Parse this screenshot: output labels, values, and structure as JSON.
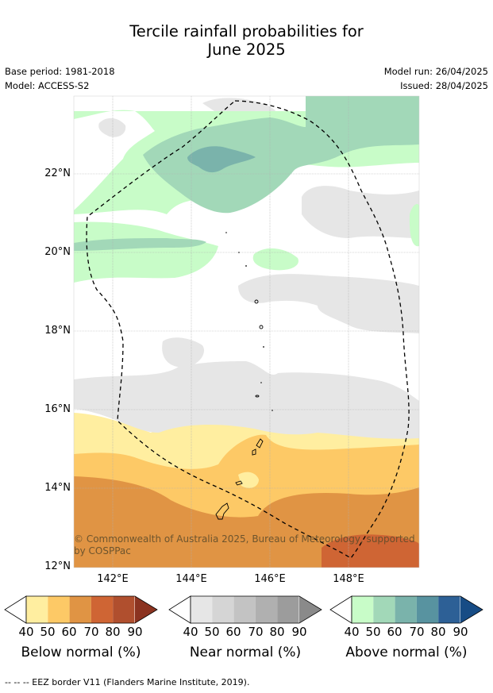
{
  "title_line1": "Tercile rainfall probabilities for",
  "title_line2": "June 2025",
  "base_period": "Base period: 1981-2018",
  "model": "Model: ACCESS-S2",
  "model_run": "Model run: 26/04/2025",
  "issued": "Issued: 28/04/2025",
  "lat_labels": [
    "22°N",
    "20°N",
    "18°N",
    "16°N",
    "14°N",
    "12°N"
  ],
  "lon_labels": [
    "142°E",
    "144°E",
    "146°E",
    "148°E"
  ],
  "copyright": "© Commonwealth of Australia 2025, Bureau of Meteorology, supported by COSPPac",
  "legends": [
    {
      "title": "Below normal (%)",
      "ticks": [
        "40",
        "50",
        "60",
        "70",
        "80",
        "90"
      ],
      "colors": [
        "#ffeea0",
        "#fdc966",
        "#e09444",
        "#cf6534",
        "#b04f2e",
        "#8b3320"
      ]
    },
    {
      "title": "Near normal (%)",
      "ticks": [
        "40",
        "50",
        "60",
        "70",
        "80",
        "90"
      ],
      "colors": [
        "#e6e6e6",
        "#d5d5d5",
        "#c3c3c3",
        "#b0b0b0",
        "#9c9c9c",
        "#8a8a8a"
      ]
    },
    {
      "title": "Above normal (%)",
      "ticks": [
        "40",
        "50",
        "60",
        "70",
        "80",
        "90"
      ],
      "colors": [
        "#c8fcc8",
        "#a2d8b8",
        "#7ab3ab",
        "#5893a0",
        "#2d6096",
        "#174c85"
      ]
    }
  ],
  "footer": "--  --  -- EEZ border V11 (Flanders Marine Institute, 2019)."
}
